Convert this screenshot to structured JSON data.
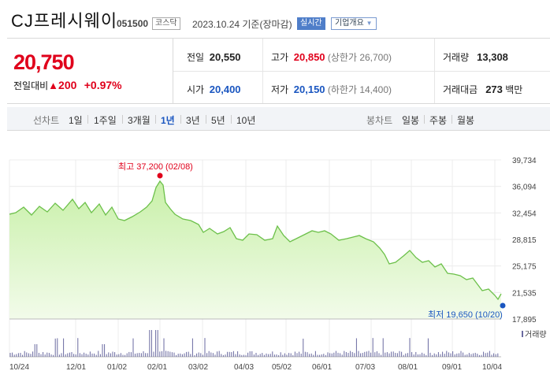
{
  "header": {
    "name": "CJ프레시웨이",
    "code": "051500",
    "market": "코스닥",
    "date": "2023.10.24 기준(장마감)",
    "realtime": "실시간",
    "company_info": "기업개요",
    "caret": "▼"
  },
  "quote": {
    "price": "20,750",
    "change_label": "전일대비",
    "change_arrow": "▲",
    "change": "200",
    "change_pct": "+0.97%",
    "prev_label": "전일",
    "prev": "20,550",
    "high_label": "고가",
    "high": "20,850",
    "upper_limit": "(상한가 26,700)",
    "volume_label": "거래량",
    "volume": "13,308",
    "open_label": "시가",
    "open": "20,400",
    "low_label": "저가",
    "low": "20,150",
    "lower_limit": "(하한가 14,400)",
    "amount_label": "거래대금",
    "amount": "273",
    "amount_unit": "백만"
  },
  "tabs": {
    "line_label": "선차트",
    "line": [
      "1일",
      "1주일",
      "3개월",
      "1년",
      "3년",
      "5년",
      "10년"
    ],
    "line_selected": 3,
    "candle_label": "봉차트",
    "candle": [
      "일봉",
      "주봉",
      "월봉"
    ]
  },
  "chart_data": {
    "type": "area",
    "y_ticks": [
      "39,734",
      "36,094",
      "32,454",
      "28,815",
      "25,175",
      "21,535",
      "17,895"
    ],
    "ylim": [
      17895,
      39734
    ],
    "x_ticks": [
      "10/24",
      "12/01",
      "01/02",
      "02/01",
      "03/02",
      "04/03",
      "05/02",
      "06/01",
      "07/03",
      "08/01",
      "09/01",
      "10/04"
    ],
    "max_label": "최고 37,200 (02/08)",
    "min_label": "최저 19,650 (10/20)",
    "volume_label": "거래량",
    "colors": {
      "line": "#6cc04a",
      "fill": "#c8f0a8",
      "max": "#e0001b",
      "min": "#1a56c0",
      "volume": "#6a6aa0"
    }
  }
}
